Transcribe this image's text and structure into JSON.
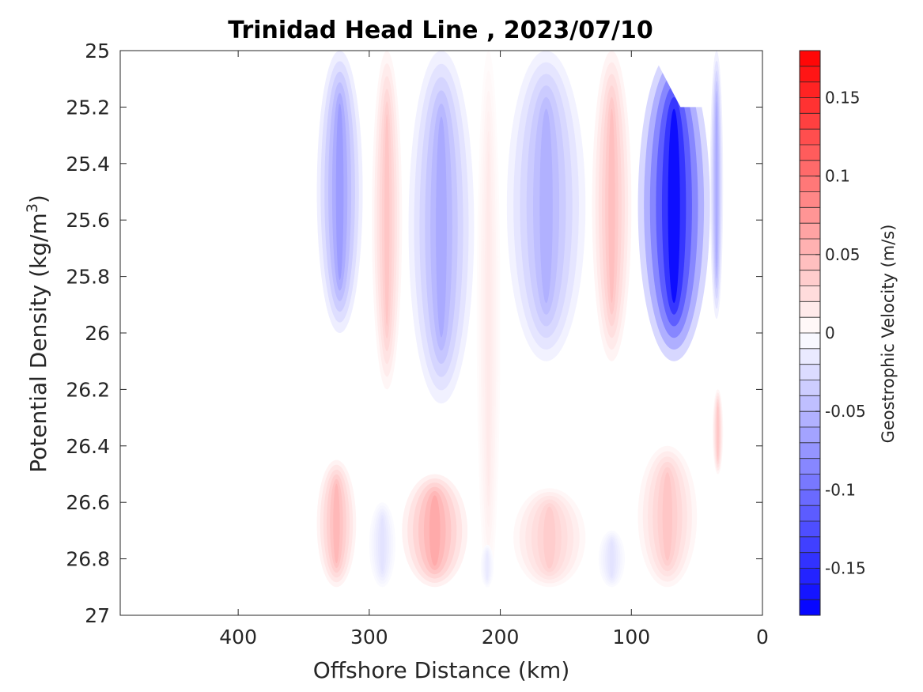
{
  "chart_data": {
    "type": "heatmap",
    "subtype": "filled-contour",
    "title": "Trinidad Head Line , 2023/07/10",
    "xlabel": "Offshore Distance (km)",
    "ylabel": "Potential Density (kg/m",
    "ylabel_superscript": "3",
    "ylabel_suffix": ")",
    "xlim": [
      490,
      0
    ],
    "x_reversed": true,
    "ylim": [
      25,
      27
    ],
    "y_reversed": true,
    "x_ticks": [
      400,
      300,
      200,
      100,
      0
    ],
    "y_ticks": [
      25,
      25.2,
      25.4,
      25.6,
      25.8,
      26,
      26.2,
      26.4,
      26.6,
      26.8,
      27
    ],
    "y_tick_labels": [
      "25",
      "25.2",
      "25.4",
      "25.6",
      "25.8",
      "26",
      "26.2",
      "26.4",
      "26.6",
      "26.8",
      "27"
    ],
    "colorbar": {
      "label": "Geostrophic Velocity (m/s)",
      "clim": [
        -0.18,
        0.18
      ],
      "levels": 36,
      "ticks": [
        0.15,
        0.1,
        0.05,
        0,
        -0.05,
        -0.1,
        -0.15
      ],
      "tick_labels": [
        "0.15",
        "0.1",
        "0.05",
        "0",
        "-0.05",
        "-0.1",
        "-0.15"
      ],
      "colormap": "blue-white-red",
      "color_min": "#0000ff",
      "color_mid": "#ffffff",
      "color_max": "#ff0000"
    },
    "data_coverage": {
      "x_range_km": [
        340,
        30
      ],
      "y_range": [
        25,
        26.9
      ]
    },
    "features": [
      {
        "x": [
          340,
          305
        ],
        "y": [
          25.0,
          26.0
        ],
        "sign": "negative",
        "peak": -0.07
      },
      {
        "x": [
          298,
          275
        ],
        "y": [
          25.0,
          26.2
        ],
        "sign": "positive",
        "peak": 0.04
      },
      {
        "x": [
          270,
          220
        ],
        "y": [
          25.0,
          26.25
        ],
        "sign": "negative",
        "peak": -0.06
      },
      {
        "x": [
          218,
          200
        ],
        "y": [
          25.0,
          26.9
        ],
        "sign": "positive",
        "peak": 0.015
      },
      {
        "x": [
          195,
          135
        ],
        "y": [
          25.0,
          26.1
        ],
        "sign": "negative",
        "peak": -0.055
      },
      {
        "x": [
          130,
          100
        ],
        "y": [
          25.0,
          26.1
        ],
        "sign": "positive",
        "peak": 0.045
      },
      {
        "x": [
          95,
          40
        ],
        "y": [
          25.0,
          26.1
        ],
        "sign": "negative",
        "peak": -0.17
      },
      {
        "x": [
          40,
          30
        ],
        "y": [
          25.0,
          25.95
        ],
        "sign": "negative",
        "peak": -0.06
      },
      {
        "x": [
          38,
          30
        ],
        "y": [
          26.2,
          26.5
        ],
        "sign": "positive",
        "peak": 0.04
      },
      {
        "x": [
          340,
          310
        ],
        "y": [
          26.45,
          26.9
        ],
        "sign": "positive",
        "peak": 0.05
      },
      {
        "x": [
          300,
          280
        ],
        "y": [
          26.6,
          26.9
        ],
        "sign": "negative",
        "peak": -0.02
      },
      {
        "x": [
          275,
          225
        ],
        "y": [
          26.5,
          26.9
        ],
        "sign": "positive",
        "peak": 0.06
      },
      {
        "x": [
          215,
          205
        ],
        "y": [
          26.75,
          26.9
        ],
        "sign": "negative",
        "peak": -0.015
      },
      {
        "x": [
          190,
          135
        ],
        "y": [
          26.55,
          26.9
        ],
        "sign": "positive",
        "peak": 0.035
      },
      {
        "x": [
          125,
          105
        ],
        "y": [
          26.7,
          26.9
        ],
        "sign": "negative",
        "peak": -0.02
      },
      {
        "x": [
          95,
          50
        ],
        "y": [
          26.4,
          26.9
        ],
        "sign": "positive",
        "peak": 0.04
      }
    ],
    "missing_data": [
      {
        "description": "white gap near surface",
        "x": [
          85,
          40
        ],
        "y": [
          25.0,
          25.2
        ]
      }
    ]
  }
}
